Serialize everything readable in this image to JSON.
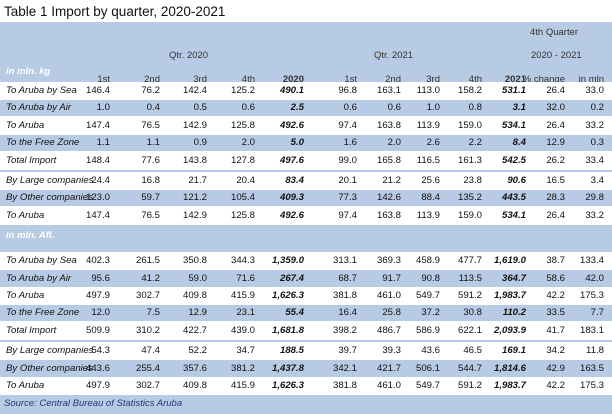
{
  "title": "Table 1 Import by quarter, 2020-2021",
  "headers": {
    "qtr2020": "Qtr. 2020",
    "qtr2021": "Qtr. 2021",
    "q4": "4th Quarter",
    "q4range": "2020 - 2021",
    "cols": [
      "1st",
      "2nd",
      "3rd",
      "4th",
      "2020",
      "1st",
      "2nd",
      "3rd",
      "4th",
      "2021",
      "% change",
      "in mln"
    ]
  },
  "sections": [
    {
      "unit": "in mln. kg",
      "groups": [
        [
          {
            "label": "To Aruba by Sea",
            "v": [
              "146.4",
              "76.2",
              "142.4",
              "125.2",
              "490.1",
              "96.8",
              "163.1",
              "113.0",
              "158.2",
              "531.1",
              "26.4",
              "33.0"
            ]
          },
          {
            "label": "To Aruba by Air",
            "v": [
              "1.0",
              "0.4",
              "0.5",
              "0.6",
              "2.5",
              "0.6",
              "0.6",
              "1.0",
              "0.8",
              "3.1",
              "32.0",
              "0.2"
            ]
          },
          {
            "label": "To Aruba",
            "v": [
              "147.4",
              "76.5",
              "142.9",
              "125.8",
              "492.6",
              "97.4",
              "163.8",
              "113.9",
              "159.0",
              "534.1",
              "26.4",
              "33.2"
            ]
          },
          {
            "label": "To the Free Zone",
            "v": [
              "1.1",
              "1.1",
              "0.9",
              "2.0",
              "5.0",
              "1.6",
              "2.0",
              "2.6",
              "2.2",
              "8.4",
              "12.9",
              "0.3"
            ]
          },
          {
            "label": "Total Import",
            "v": [
              "148.4",
              "77.6",
              "143.8",
              "127.8",
              "497.6",
              "99.0",
              "165.8",
              "116.5",
              "161.3",
              "542.5",
              "26.2",
              "33.4"
            ]
          }
        ],
        [
          {
            "label": "By Large companies",
            "v": [
              "24.4",
              "16.8",
              "21.7",
              "20.4",
              "83.4",
              "20.1",
              "21.2",
              "25.6",
              "23.8",
              "90.6",
              "16.5",
              "3.4"
            ]
          },
          {
            "label": "By Other companies",
            "v": [
              "123.0",
              "59.7",
              "121.2",
              "105.4",
              "409.3",
              "77.3",
              "142.6",
              "88.4",
              "135.2",
              "443.5",
              "28.3",
              "29.8"
            ]
          },
          {
            "label": "To Aruba",
            "v": [
              "147.4",
              "76.5",
              "142.9",
              "125.8",
              "492.6",
              "97.4",
              "163.8",
              "113.9",
              "159.0",
              "534.1",
              "26.4",
              "33.2"
            ]
          }
        ]
      ]
    },
    {
      "unit": "in mln. Afl.",
      "groups": [
        [
          {
            "label": "To Aruba by Sea",
            "v": [
              "402.3",
              "261.5",
              "350.8",
              "344.3",
              "1,359.0",
              "313.1",
              "369.3",
              "458.9",
              "477.7",
              "1,619.0",
              "38.7",
              "133.4"
            ]
          },
          {
            "label": "To Aruba by Air",
            "v": [
              "95.6",
              "41.2",
              "59.0",
              "71.6",
              "267.4",
              "68.7",
              "91.7",
              "90.8",
              "113.5",
              "364.7",
              "58.6",
              "42.0"
            ]
          },
          {
            "label": "To Aruba",
            "v": [
              "497.9",
              "302.7",
              "409.8",
              "415.9",
              "1,626.3",
              "381.8",
              "461.0",
              "549.7",
              "591.2",
              "1,983.7",
              "42.2",
              "175.3"
            ]
          },
          {
            "label": "To the Free Zone",
            "v": [
              "12.0",
              "7.5",
              "12.9",
              "23.1",
              "55.4",
              "16.4",
              "25.8",
              "37.2",
              "30.8",
              "110.2",
              "33.5",
              "7.7"
            ]
          },
          {
            "label": "Total Import",
            "v": [
              "509.9",
              "310.2",
              "422.7",
              "439.0",
              "1,681.8",
              "398.2",
              "486.7",
              "586.9",
              "622.1",
              "2,093.9",
              "41.7",
              "183.1"
            ]
          }
        ],
        [
          {
            "label": "By Large companies",
            "v": [
              "54.3",
              "47.4",
              "52.2",
              "34.7",
              "188.5",
              "39.7",
              "39.3",
              "43.6",
              "46.5",
              "169.1",
              "34.2",
              "11.8"
            ]
          },
          {
            "label": "By Other companies",
            "v": [
              "443.6",
              "255.4",
              "357.6",
              "381.2",
              "1,437.8",
              "342.1",
              "421.7",
              "506.1",
              "544.7",
              "1,814.6",
              "42.9",
              "163.5"
            ]
          },
          {
            "label": "To Aruba",
            "v": [
              "497.9",
              "302.7",
              "409.8",
              "415.9",
              "1,626.3",
              "381.8",
              "461.0",
              "549.7",
              "591.2",
              "1,983.7",
              "42.2",
              "175.3"
            ]
          }
        ]
      ]
    }
  ],
  "source": "Source: Central Bureau of Statistics Aruba"
}
